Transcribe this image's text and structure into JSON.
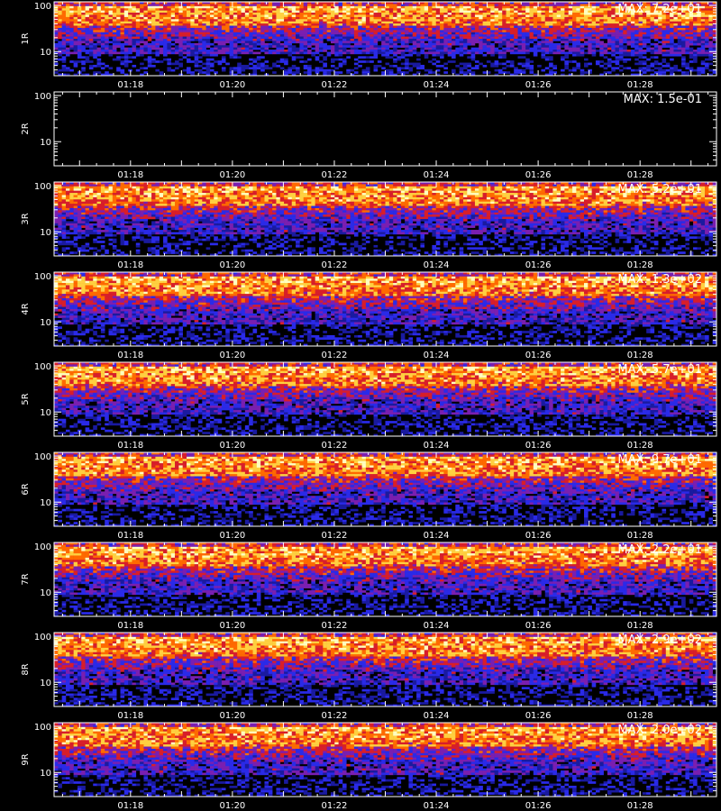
{
  "footer_label": "",
  "chart_data": {
    "type": "heatmap",
    "x_axis": {
      "ticks": [
        "01:18",
        "01:20",
        "01:22",
        "01:24",
        "01:26",
        "01:28"
      ],
      "range": [
        "01:16:30",
        "01:29:30"
      ]
    },
    "y_axis": {
      "scale": "log",
      "ticks": [
        "100",
        "10"
      ],
      "range": [
        3,
        120
      ]
    },
    "colormap": [
      "#000000",
      "#1a1aa0",
      "#2a2ae8",
      "#7a1fb0",
      "#d81e2a",
      "#ff6a00",
      "#ffd040",
      "#ffffc0"
    ],
    "panels": [
      {
        "label": "1R",
        "max_label": "MAX: 7.2e+01",
        "max": 72
      },
      {
        "label": "2R",
        "max_label": "MAX: 1.5e-01",
        "max": 0.15
      },
      {
        "label": "3R",
        "max_label": "MAX: 5.2e+01",
        "max": 52
      },
      {
        "label": "4R",
        "max_label": "MAX: 1.3e+02",
        "max": 130
      },
      {
        "label": "5R",
        "max_label": "MAX: 5.7e+01",
        "max": 57
      },
      {
        "label": "6R",
        "max_label": "MAX: 9.7e+01",
        "max": 97
      },
      {
        "label": "7R",
        "max_label": "MAX: 2.2e+01",
        "max": 22
      },
      {
        "label": "8R",
        "max_label": "MAX: 2.9e+02",
        "max": 290
      },
      {
        "label": "9R",
        "max_label": "MAX: 2.0e+02",
        "max": 200
      }
    ]
  }
}
